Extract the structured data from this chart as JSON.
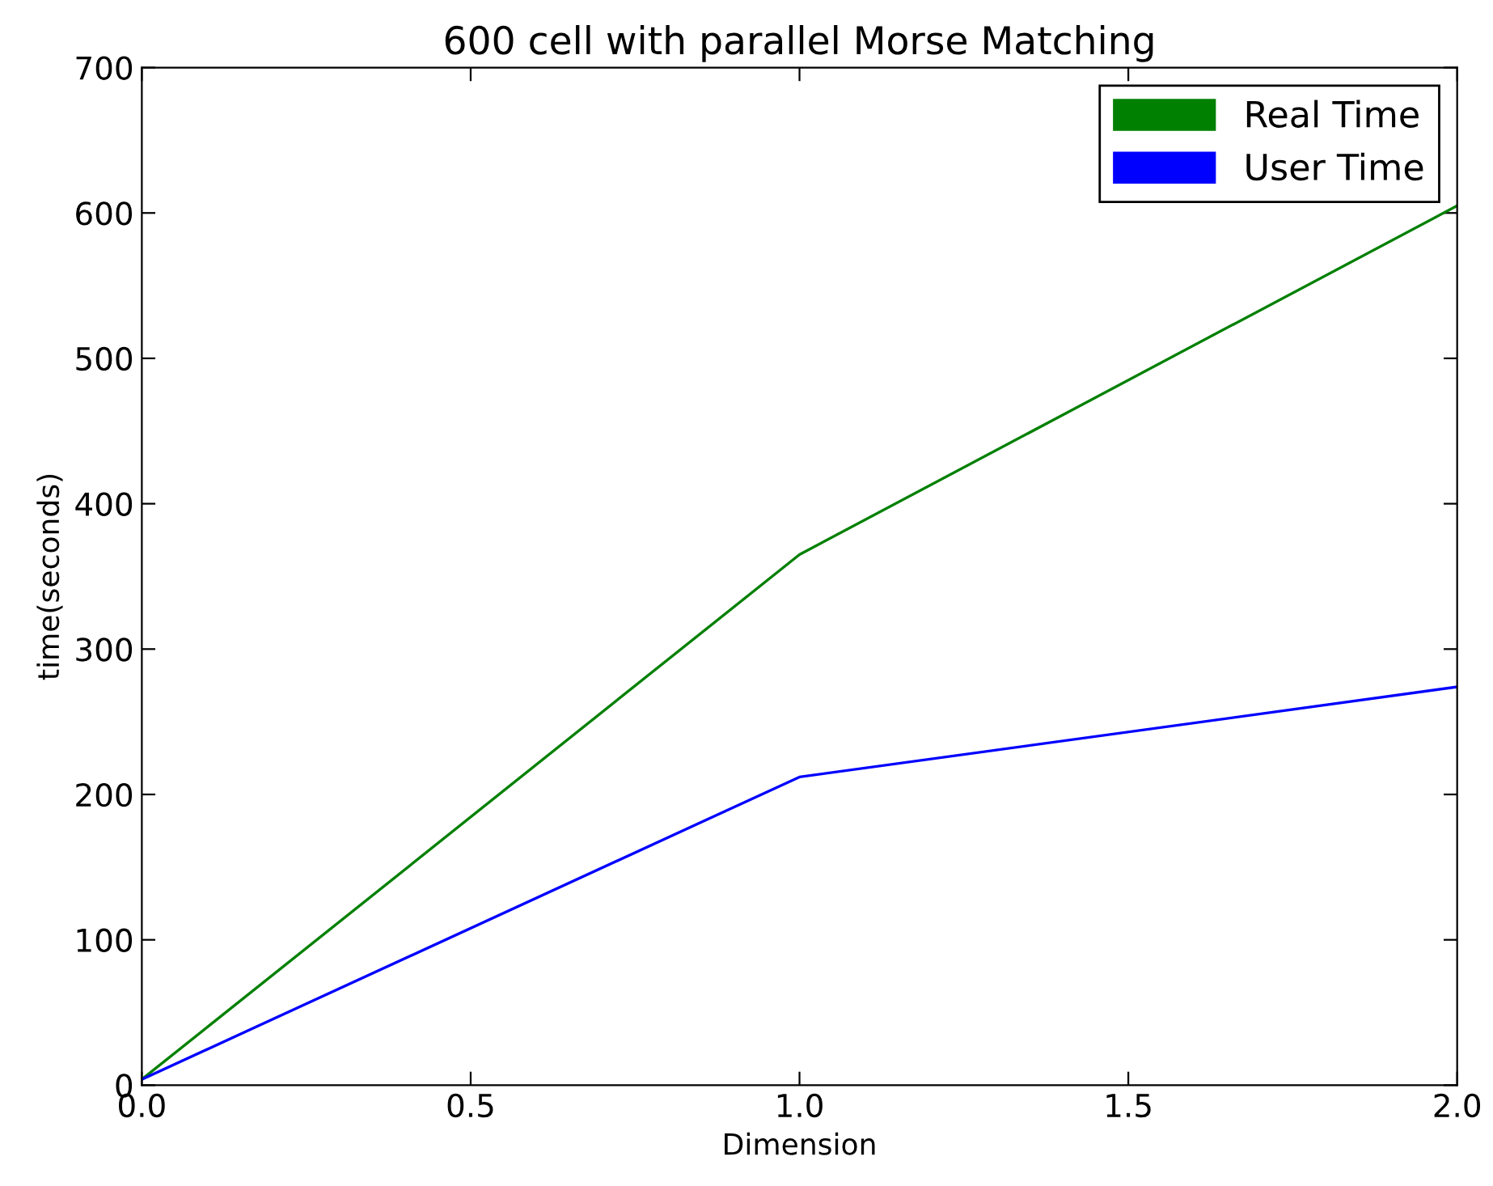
{
  "chart_data": {
    "type": "line",
    "title": "600 cell with parallel Morse Matching",
    "xlabel": "Dimension",
    "ylabel": "time(seconds)",
    "x": [
      0,
      1,
      2
    ],
    "series": [
      {
        "name": "Real Time",
        "color": "#008000",
        "values": [
          4,
          365,
          605
        ]
      },
      {
        "name": "User Time",
        "color": "#0000ff",
        "values": [
          4,
          212,
          274
        ]
      }
    ],
    "xlim": [
      0,
      2
    ],
    "ylim": [
      0,
      700
    ],
    "xticks": [
      {
        "value": 0,
        "label": "0.0"
      },
      {
        "value": 0.5,
        "label": "0.5"
      },
      {
        "value": 1,
        "label": "1.0"
      },
      {
        "value": 1.5,
        "label": "1.5"
      },
      {
        "value": 2,
        "label": "2.0"
      }
    ],
    "yticks": [
      0,
      100,
      200,
      300,
      400,
      500,
      600,
      700
    ],
    "grid": false,
    "legend": "top right",
    "marker": "none",
    "line_style": "solid"
  }
}
